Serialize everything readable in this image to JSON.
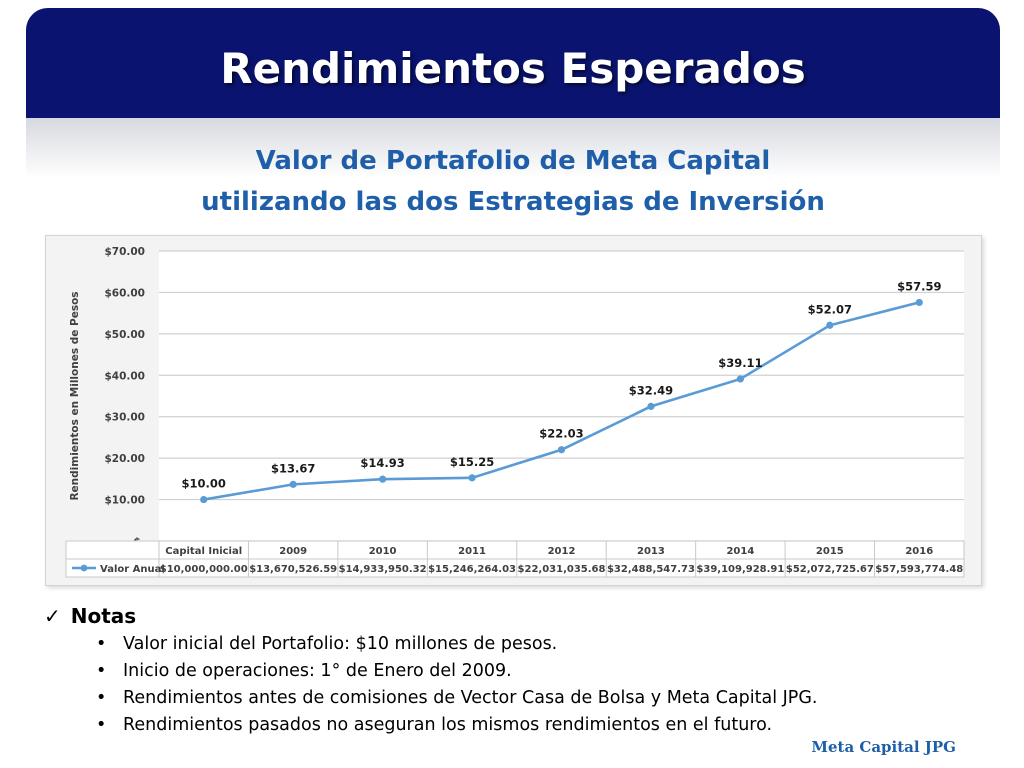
{
  "slide": {
    "title": "Rendimientos Esperados",
    "chart_title_line1": "Valor de Portafolio de Meta Capital",
    "chart_title_line2": "utilizando las dos Estrategias de Inversión",
    "brand": "Meta Capital JPG"
  },
  "notes": {
    "heading": "Notas",
    "items": [
      "Valor inicial del Portafolio: $10 millones de pesos.",
      "Inicio de operaciones: 1° de Enero del 2009.",
      "Rendimientos antes de comisiones de Vector Casa de Bolsa y Meta Capital JPG.",
      "Rendimientos pasados no aseguran los mismos rendimientos en el futuro."
    ]
  },
  "chart_data": {
    "type": "line",
    "title": "",
    "ylabel": "Rendimientos en Millones de Pesos",
    "xlabel": "",
    "ylim": [
      0,
      70
    ],
    "yticks": [
      0,
      10,
      20,
      30,
      40,
      50,
      60,
      70
    ],
    "ytick_labels": [
      "$-",
      "$10.00",
      "$20.00",
      "$30.00",
      "$40.00",
      "$50.00",
      "$60.00",
      "$70.00"
    ],
    "categories": [
      "Capital Inicial",
      "2009",
      "2010",
      "2011",
      "2012",
      "2013",
      "2014",
      "2015",
      "2016"
    ],
    "grid": true,
    "line_color": "#5b9bd5",
    "series": [
      {
        "name": "Valor Anual",
        "values": [
          10.0,
          13.67,
          14.93,
          15.25,
          22.03,
          32.49,
          39.11,
          52.07,
          57.59
        ],
        "data_labels": [
          "$10.00",
          "$13.67",
          "$14.93",
          "$15.25",
          "$22.03",
          "$32.49",
          "$39.11",
          "$52.07",
          "$57.59"
        ],
        "table_values": [
          "$10,000,000.00",
          "$13,670,526.59",
          "$14,933,950.32",
          "$15,246,264.03",
          "$22,031,035.68",
          "$32,488,547.73",
          "$39,109,928.91",
          "$52,072,725.67",
          "$57,593,774.48"
        ]
      }
    ]
  }
}
